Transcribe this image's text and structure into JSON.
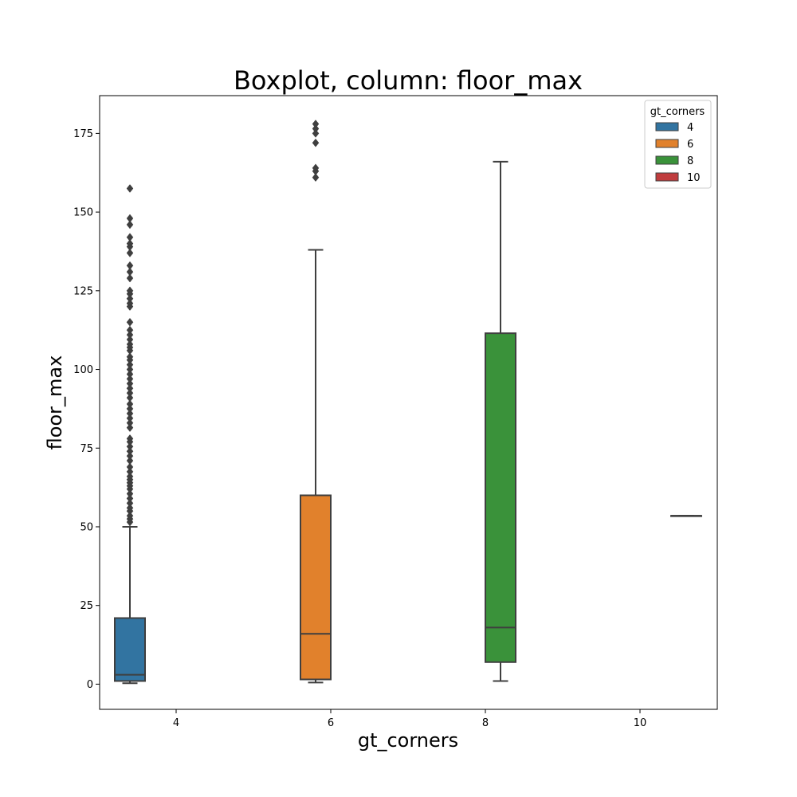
{
  "chart_data": {
    "type": "boxplot",
    "title": "Boxplot, column: floor_max",
    "xlabel": "gt_corners",
    "ylabel": "floor_max",
    "categories": [
      "4",
      "6",
      "8",
      "10"
    ],
    "ylim": [
      -8,
      187
    ],
    "yticks": [
      0,
      25,
      50,
      75,
      100,
      125,
      150,
      175
    ],
    "grid": false,
    "legend": {
      "title": "gt_corners",
      "placement": "top-right",
      "entries": [
        {
          "label": "4",
          "color": "#3274a1"
        },
        {
          "label": "6",
          "color": "#e1812c"
        },
        {
          "label": "8",
          "color": "#3a923a"
        },
        {
          "label": "10",
          "color": "#c03d3e"
        }
      ]
    },
    "series": [
      {
        "name": "4",
        "category": "4",
        "color": "#3274a1",
        "whisker_low": 0.3,
        "q1": 1,
        "median": 3,
        "q3": 21,
        "whisker_high": 50,
        "outliers": [
          51.5,
          52.5,
          53.5,
          55,
          56,
          57.5,
          59,
          60.5,
          62,
          63,
          64,
          65,
          66,
          67.5,
          69,
          71,
          72.5,
          74,
          75.5,
          77,
          78,
          81.5,
          83,
          84.5,
          86,
          87.5,
          89,
          91,
          92.5,
          94,
          95.5,
          97,
          98.5,
          100,
          101.5,
          103,
          104,
          106,
          107,
          108,
          109.5,
          111,
          112.5,
          115,
          120,
          121,
          122.5,
          124,
          125,
          129,
          131,
          133,
          137,
          139,
          140,
          142,
          146,
          148,
          157.5
        ]
      },
      {
        "name": "6",
        "category": "6",
        "color": "#e1812c",
        "whisker_low": 0.5,
        "q1": 1.5,
        "median": 16,
        "q3": 60,
        "whisker_high": 138,
        "outliers": [
          161,
          163,
          164,
          172,
          175,
          176.5,
          178
        ]
      },
      {
        "name": "8",
        "category": "8",
        "color": "#3a923a",
        "whisker_low": 1,
        "q1": 7,
        "median": 18,
        "q3": 111.5,
        "whisker_high": 166,
        "outliers": []
      },
      {
        "name": "10",
        "category": "10",
        "color": "#c03d3e",
        "whisker_low": 53.5,
        "q1": 53.5,
        "median": 53.5,
        "q3": 53.5,
        "whisker_high": 53.5,
        "outliers": []
      }
    ]
  }
}
